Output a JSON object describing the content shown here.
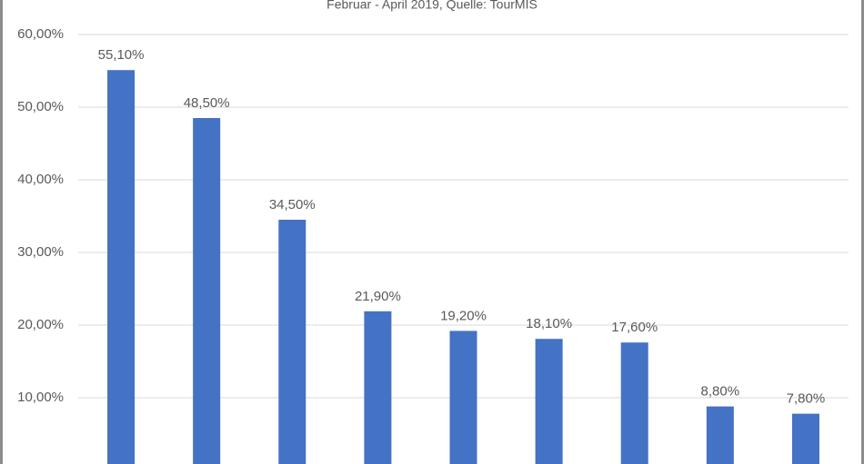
{
  "chart_data": {
    "type": "bar",
    "subtitle": "Februar - April 2019, Quelle: TourMIS",
    "categories": [
      null,
      null,
      null,
      null,
      null,
      null,
      null,
      null,
      null
    ],
    "values": [
      55.1,
      48.5,
      34.5,
      21.9,
      19.2,
      18.1,
      17.6,
      8.8,
      7.8
    ],
    "value_labels": [
      "55,10%",
      "48,50%",
      "34,50%",
      "21,90%",
      "19,20%",
      "18,10%",
      "17,60%",
      "8,80%",
      "7,80%"
    ],
    "color": "#4472c4",
    "ylim": [
      0,
      60
    ],
    "yticks": [
      {
        "value": 10,
        "label": "10,00%"
      },
      {
        "value": 20,
        "label": "20,00%"
      },
      {
        "value": 30,
        "label": "30,00%"
      },
      {
        "value": 40,
        "label": "40,00%"
      },
      {
        "value": 50,
        "label": "50,00%"
      },
      {
        "value": 60,
        "label": "60,00%"
      }
    ],
    "grid": true
  }
}
